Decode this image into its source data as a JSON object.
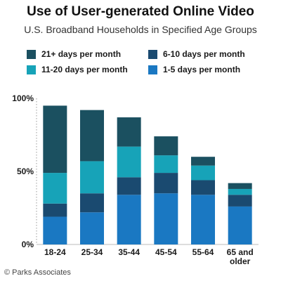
{
  "header": {
    "title": "Use of User-generated Online Video",
    "subtitle": "U.S. Broadband Households in Specified Age Groups"
  },
  "legend": {
    "items": [
      {
        "label": "21+ days per month",
        "color": "#1b5060"
      },
      {
        "label": "6-10 days per month",
        "color": "#1a4a70"
      },
      {
        "label": "11-20 days per month",
        "color": "#17a3b8"
      },
      {
        "label": "1-5 days per month",
        "color": "#1a78c2"
      }
    ]
  },
  "footer": {
    "credit": "© Parks Associates"
  },
  "chart_data": {
    "type": "bar",
    "stacked": true,
    "categories": [
      "18-24",
      "25-34",
      "35-44",
      "45-54",
      "55-64",
      "65 and older"
    ],
    "series": [
      {
        "name": "1-5 days per month",
        "color": "#1a78c2",
        "values": [
          19,
          22,
          34,
          35,
          34,
          26
        ]
      },
      {
        "name": "6-10 days per month",
        "color": "#1a4a70",
        "values": [
          9,
          13,
          12,
          14,
          10,
          8
        ]
      },
      {
        "name": "11-20 days per month",
        "color": "#17a3b8",
        "values": [
          21,
          22,
          21,
          12,
          10,
          4
        ]
      },
      {
        "name": "21+ days per month",
        "color": "#1b5060",
        "values": [
          46,
          35,
          20,
          13,
          6,
          4
        ]
      }
    ],
    "ylim": [
      0,
      100
    ],
    "yticks": [
      "0%",
      "50%",
      "100%"
    ],
    "ytick_values": [
      0,
      50,
      100
    ],
    "xlabel": "",
    "ylabel": "",
    "legend_position": "top",
    "grid": false
  }
}
